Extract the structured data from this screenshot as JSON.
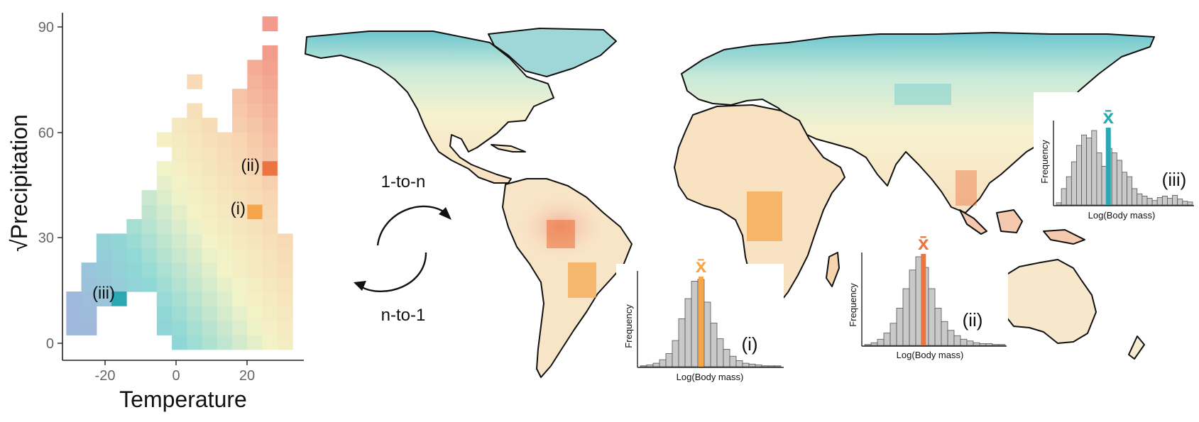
{
  "chart_data": [
    {
      "type": "heatmap",
      "xlabel": "Temperature",
      "ylabel": "√Precipitation",
      "xticks": [
        "-20",
        "0",
        "20"
      ],
      "yticks": [
        "0",
        "30",
        "60",
        "90"
      ],
      "xlim": [
        -29,
        35
      ],
      "ylim": [
        -3,
        93
      ],
      "bin_size": {
        "temperature": 4,
        "sqrt_precipitation": 4
      },
      "color_scale": [
        "#9fb8dc",
        "#8fd8d6",
        "#f3f3c8",
        "#f8d7b3",
        "#f29b8c"
      ],
      "cells": [
        {
          "x": -26,
          "y": 6
        },
        {
          "x": -26,
          "y": 10
        },
        {
          "x": -26,
          "y": 14
        },
        {
          "x": -22,
          "y": 6
        },
        {
          "x": -22,
          "y": 10
        },
        {
          "x": -22,
          "y": 14
        },
        {
          "x": -22,
          "y": 18
        },
        {
          "x": -22,
          "y": 22
        },
        {
          "x": -18,
          "y": 14
        },
        {
          "x": -18,
          "y": 18
        },
        {
          "x": -18,
          "y": 22
        },
        {
          "x": -18,
          "y": 26
        },
        {
          "x": -18,
          "y": 30
        },
        {
          "x": -14,
          "y": 14
        },
        {
          "x": -14,
          "y": 18
        },
        {
          "x": -14,
          "y": 22
        },
        {
          "x": -14,
          "y": 26
        },
        {
          "x": -14,
          "y": 30
        },
        {
          "x": -10,
          "y": 18
        },
        {
          "x": -10,
          "y": 22
        },
        {
          "x": -10,
          "y": 26
        },
        {
          "x": -10,
          "y": 30
        },
        {
          "x": -10,
          "y": 34
        },
        {
          "x": -6,
          "y": 18
        },
        {
          "x": -6,
          "y": 22
        },
        {
          "x": -6,
          "y": 26
        },
        {
          "x": -6,
          "y": 30
        },
        {
          "x": -6,
          "y": 34
        },
        {
          "x": -6,
          "y": 38
        },
        {
          "x": -6,
          "y": 42
        },
        {
          "x": -2,
          "y": 6
        },
        {
          "x": -2,
          "y": 10
        },
        {
          "x": -2,
          "y": 14
        },
        {
          "x": -2,
          "y": 18
        },
        {
          "x": -2,
          "y": 22
        },
        {
          "x": -2,
          "y": 26
        },
        {
          "x": -2,
          "y": 30
        },
        {
          "x": -2,
          "y": 34
        },
        {
          "x": -2,
          "y": 38
        },
        {
          "x": -2,
          "y": 42
        },
        {
          "x": -2,
          "y": 46
        },
        {
          "x": -2,
          "y": 50
        },
        {
          "x": -2,
          "y": 58
        },
        {
          "x": 2,
          "y": 2
        },
        {
          "x": 2,
          "y": 6
        },
        {
          "x": 2,
          "y": 10
        },
        {
          "x": 2,
          "y": 14
        },
        {
          "x": 2,
          "y": 18
        },
        {
          "x": 2,
          "y": 22
        },
        {
          "x": 2,
          "y": 26
        },
        {
          "x": 2,
          "y": 30
        },
        {
          "x": 2,
          "y": 34
        },
        {
          "x": 2,
          "y": 38
        },
        {
          "x": 2,
          "y": 42
        },
        {
          "x": 2,
          "y": 46
        },
        {
          "x": 2,
          "y": 50
        },
        {
          "x": 2,
          "y": 54
        },
        {
          "x": 2,
          "y": 58
        },
        {
          "x": 2,
          "y": 62
        },
        {
          "x": 6,
          "y": 2
        },
        {
          "x": 6,
          "y": 6
        },
        {
          "x": 6,
          "y": 10
        },
        {
          "x": 6,
          "y": 14
        },
        {
          "x": 6,
          "y": 18
        },
        {
          "x": 6,
          "y": 22
        },
        {
          "x": 6,
          "y": 26
        },
        {
          "x": 6,
          "y": 30
        },
        {
          "x": 6,
          "y": 34
        },
        {
          "x": 6,
          "y": 38
        },
        {
          "x": 6,
          "y": 42
        },
        {
          "x": 6,
          "y": 46
        },
        {
          "x": 6,
          "y": 50
        },
        {
          "x": 6,
          "y": 54
        },
        {
          "x": 6,
          "y": 58
        },
        {
          "x": 6,
          "y": 62
        },
        {
          "x": 6,
          "y": 66
        },
        {
          "x": 6,
          "y": 74
        },
        {
          "x": 10,
          "y": 2
        },
        {
          "x": 10,
          "y": 6
        },
        {
          "x": 10,
          "y": 10
        },
        {
          "x": 10,
          "y": 14
        },
        {
          "x": 10,
          "y": 18
        },
        {
          "x": 10,
          "y": 22
        },
        {
          "x": 10,
          "y": 26
        },
        {
          "x": 10,
          "y": 30
        },
        {
          "x": 10,
          "y": 34
        },
        {
          "x": 10,
          "y": 38
        },
        {
          "x": 10,
          "y": 42
        },
        {
          "x": 10,
          "y": 46
        },
        {
          "x": 10,
          "y": 50
        },
        {
          "x": 10,
          "y": 54
        },
        {
          "x": 10,
          "y": 58
        },
        {
          "x": 10,
          "y": 62
        },
        {
          "x": 14,
          "y": 2
        },
        {
          "x": 14,
          "y": 6
        },
        {
          "x": 14,
          "y": 10
        },
        {
          "x": 14,
          "y": 14
        },
        {
          "x": 14,
          "y": 18
        },
        {
          "x": 14,
          "y": 22
        },
        {
          "x": 14,
          "y": 26
        },
        {
          "x": 14,
          "y": 30
        },
        {
          "x": 14,
          "y": 34
        },
        {
          "x": 14,
          "y": 38
        },
        {
          "x": 14,
          "y": 42
        },
        {
          "x": 14,
          "y": 46
        },
        {
          "x": 14,
          "y": 50
        },
        {
          "x": 14,
          "y": 54
        },
        {
          "x": 14,
          "y": 58
        },
        {
          "x": 18,
          "y": 2
        },
        {
          "x": 18,
          "y": 6
        },
        {
          "x": 18,
          "y": 10
        },
        {
          "x": 18,
          "y": 14
        },
        {
          "x": 18,
          "y": 18
        },
        {
          "x": 18,
          "y": 22
        },
        {
          "x": 18,
          "y": 26
        },
        {
          "x": 18,
          "y": 30
        },
        {
          "x": 18,
          "y": 34
        },
        {
          "x": 18,
          "y": 38
        },
        {
          "x": 18,
          "y": 42
        },
        {
          "x": 18,
          "y": 46
        },
        {
          "x": 18,
          "y": 50
        },
        {
          "x": 18,
          "y": 54
        },
        {
          "x": 18,
          "y": 58
        },
        {
          "x": 18,
          "y": 62
        },
        {
          "x": 18,
          "y": 66
        },
        {
          "x": 18,
          "y": 70
        },
        {
          "x": 22,
          "y": 2
        },
        {
          "x": 22,
          "y": 6
        },
        {
          "x": 22,
          "y": 10
        },
        {
          "x": 22,
          "y": 14
        },
        {
          "x": 22,
          "y": 18
        },
        {
          "x": 22,
          "y": 22
        },
        {
          "x": 22,
          "y": 26
        },
        {
          "x": 22,
          "y": 30
        },
        {
          "x": 22,
          "y": 34
        },
        {
          "x": 22,
          "y": 38
        },
        {
          "x": 22,
          "y": 42
        },
        {
          "x": 22,
          "y": 46
        },
        {
          "x": 22,
          "y": 50
        },
        {
          "x": 22,
          "y": 54
        },
        {
          "x": 22,
          "y": 58
        },
        {
          "x": 22,
          "y": 62
        },
        {
          "x": 22,
          "y": 66
        },
        {
          "x": 22,
          "y": 70
        },
        {
          "x": 22,
          "y": 74
        },
        {
          "x": 22,
          "y": 78
        },
        {
          "x": 26,
          "y": 2
        },
        {
          "x": 26,
          "y": 6
        },
        {
          "x": 26,
          "y": 10
        },
        {
          "x": 26,
          "y": 14
        },
        {
          "x": 26,
          "y": 18
        },
        {
          "x": 26,
          "y": 22
        },
        {
          "x": 26,
          "y": 26
        },
        {
          "x": 26,
          "y": 30
        },
        {
          "x": 26,
          "y": 34
        },
        {
          "x": 26,
          "y": 38
        },
        {
          "x": 26,
          "y": 42
        },
        {
          "x": 26,
          "y": 46
        },
        {
          "x": 26,
          "y": 50
        },
        {
          "x": 26,
          "y": 54
        },
        {
          "x": 26,
          "y": 58
        },
        {
          "x": 26,
          "y": 62
        },
        {
          "x": 26,
          "y": 66
        },
        {
          "x": 26,
          "y": 70
        },
        {
          "x": 26,
          "y": 74
        },
        {
          "x": 26,
          "y": 78
        },
        {
          "x": 26,
          "y": 82
        },
        {
          "x": 26,
          "y": 90
        },
        {
          "x": 30,
          "y": 2
        },
        {
          "x": 30,
          "y": 6
        },
        {
          "x": 30,
          "y": 10
        },
        {
          "x": 30,
          "y": 14
        },
        {
          "x": 30,
          "y": 18
        },
        {
          "x": 30,
          "y": 22
        },
        {
          "x": 30,
          "y": 26
        },
        {
          "x": 30,
          "y": 30
        }
      ],
      "highlighted_cells": [
        {
          "label": "(i)",
          "x": 22,
          "y": 38,
          "color": "#f5a54a"
        },
        {
          "label": "(ii)",
          "x": 26,
          "y": 50,
          "color": "#ec7440"
        },
        {
          "label": "(iii)",
          "x": -14,
          "y": 14,
          "color": "#2aa9b3"
        }
      ],
      "grid": false
    },
    {
      "type": "bar",
      "label": "(i)",
      "xlabel": "Log(Body mass)",
      "ylabel": "Frequency",
      "mean_symbol": "x̄",
      "mean_color": "#f5a54a",
      "values": [
        1,
        2,
        4,
        8,
        15,
        30,
        55,
        78,
        98,
        100,
        74,
        50,
        32,
        20,
        12,
        7,
        4,
        3,
        2,
        1,
        1,
        1
      ],
      "mean_bin": 9.5
    },
    {
      "type": "bar",
      "label": "(ii)",
      "xlabel": "Log(Body mass)",
      "ylabel": "Frequency",
      "mean_symbol": "x̄",
      "mean_color": "#ec7440",
      "values": [
        1,
        3,
        7,
        14,
        25,
        42,
        64,
        85,
        100,
        88,
        64,
        42,
        27,
        17,
        11,
        7,
        5,
        3,
        2,
        2,
        1,
        1
      ],
      "mean_bin": 9.2
    },
    {
      "type": "bar",
      "label": "(iii)",
      "xlabel": "Log(Body mass)",
      "ylabel": "Frequency",
      "mean_symbol": "x̄",
      "mean_color": "#2aa9b3",
      "values": [
        3,
        22,
        38,
        58,
        80,
        94,
        90,
        100,
        70,
        52,
        76,
        70,
        60,
        44,
        38,
        22,
        15,
        12,
        9,
        6,
        10,
        12,
        9,
        13,
        8,
        5,
        4
      ],
      "mean_bin": 10.3
    }
  ],
  "arrows": {
    "top_label": "1-to-n",
    "bottom_label": "n-to-1"
  }
}
